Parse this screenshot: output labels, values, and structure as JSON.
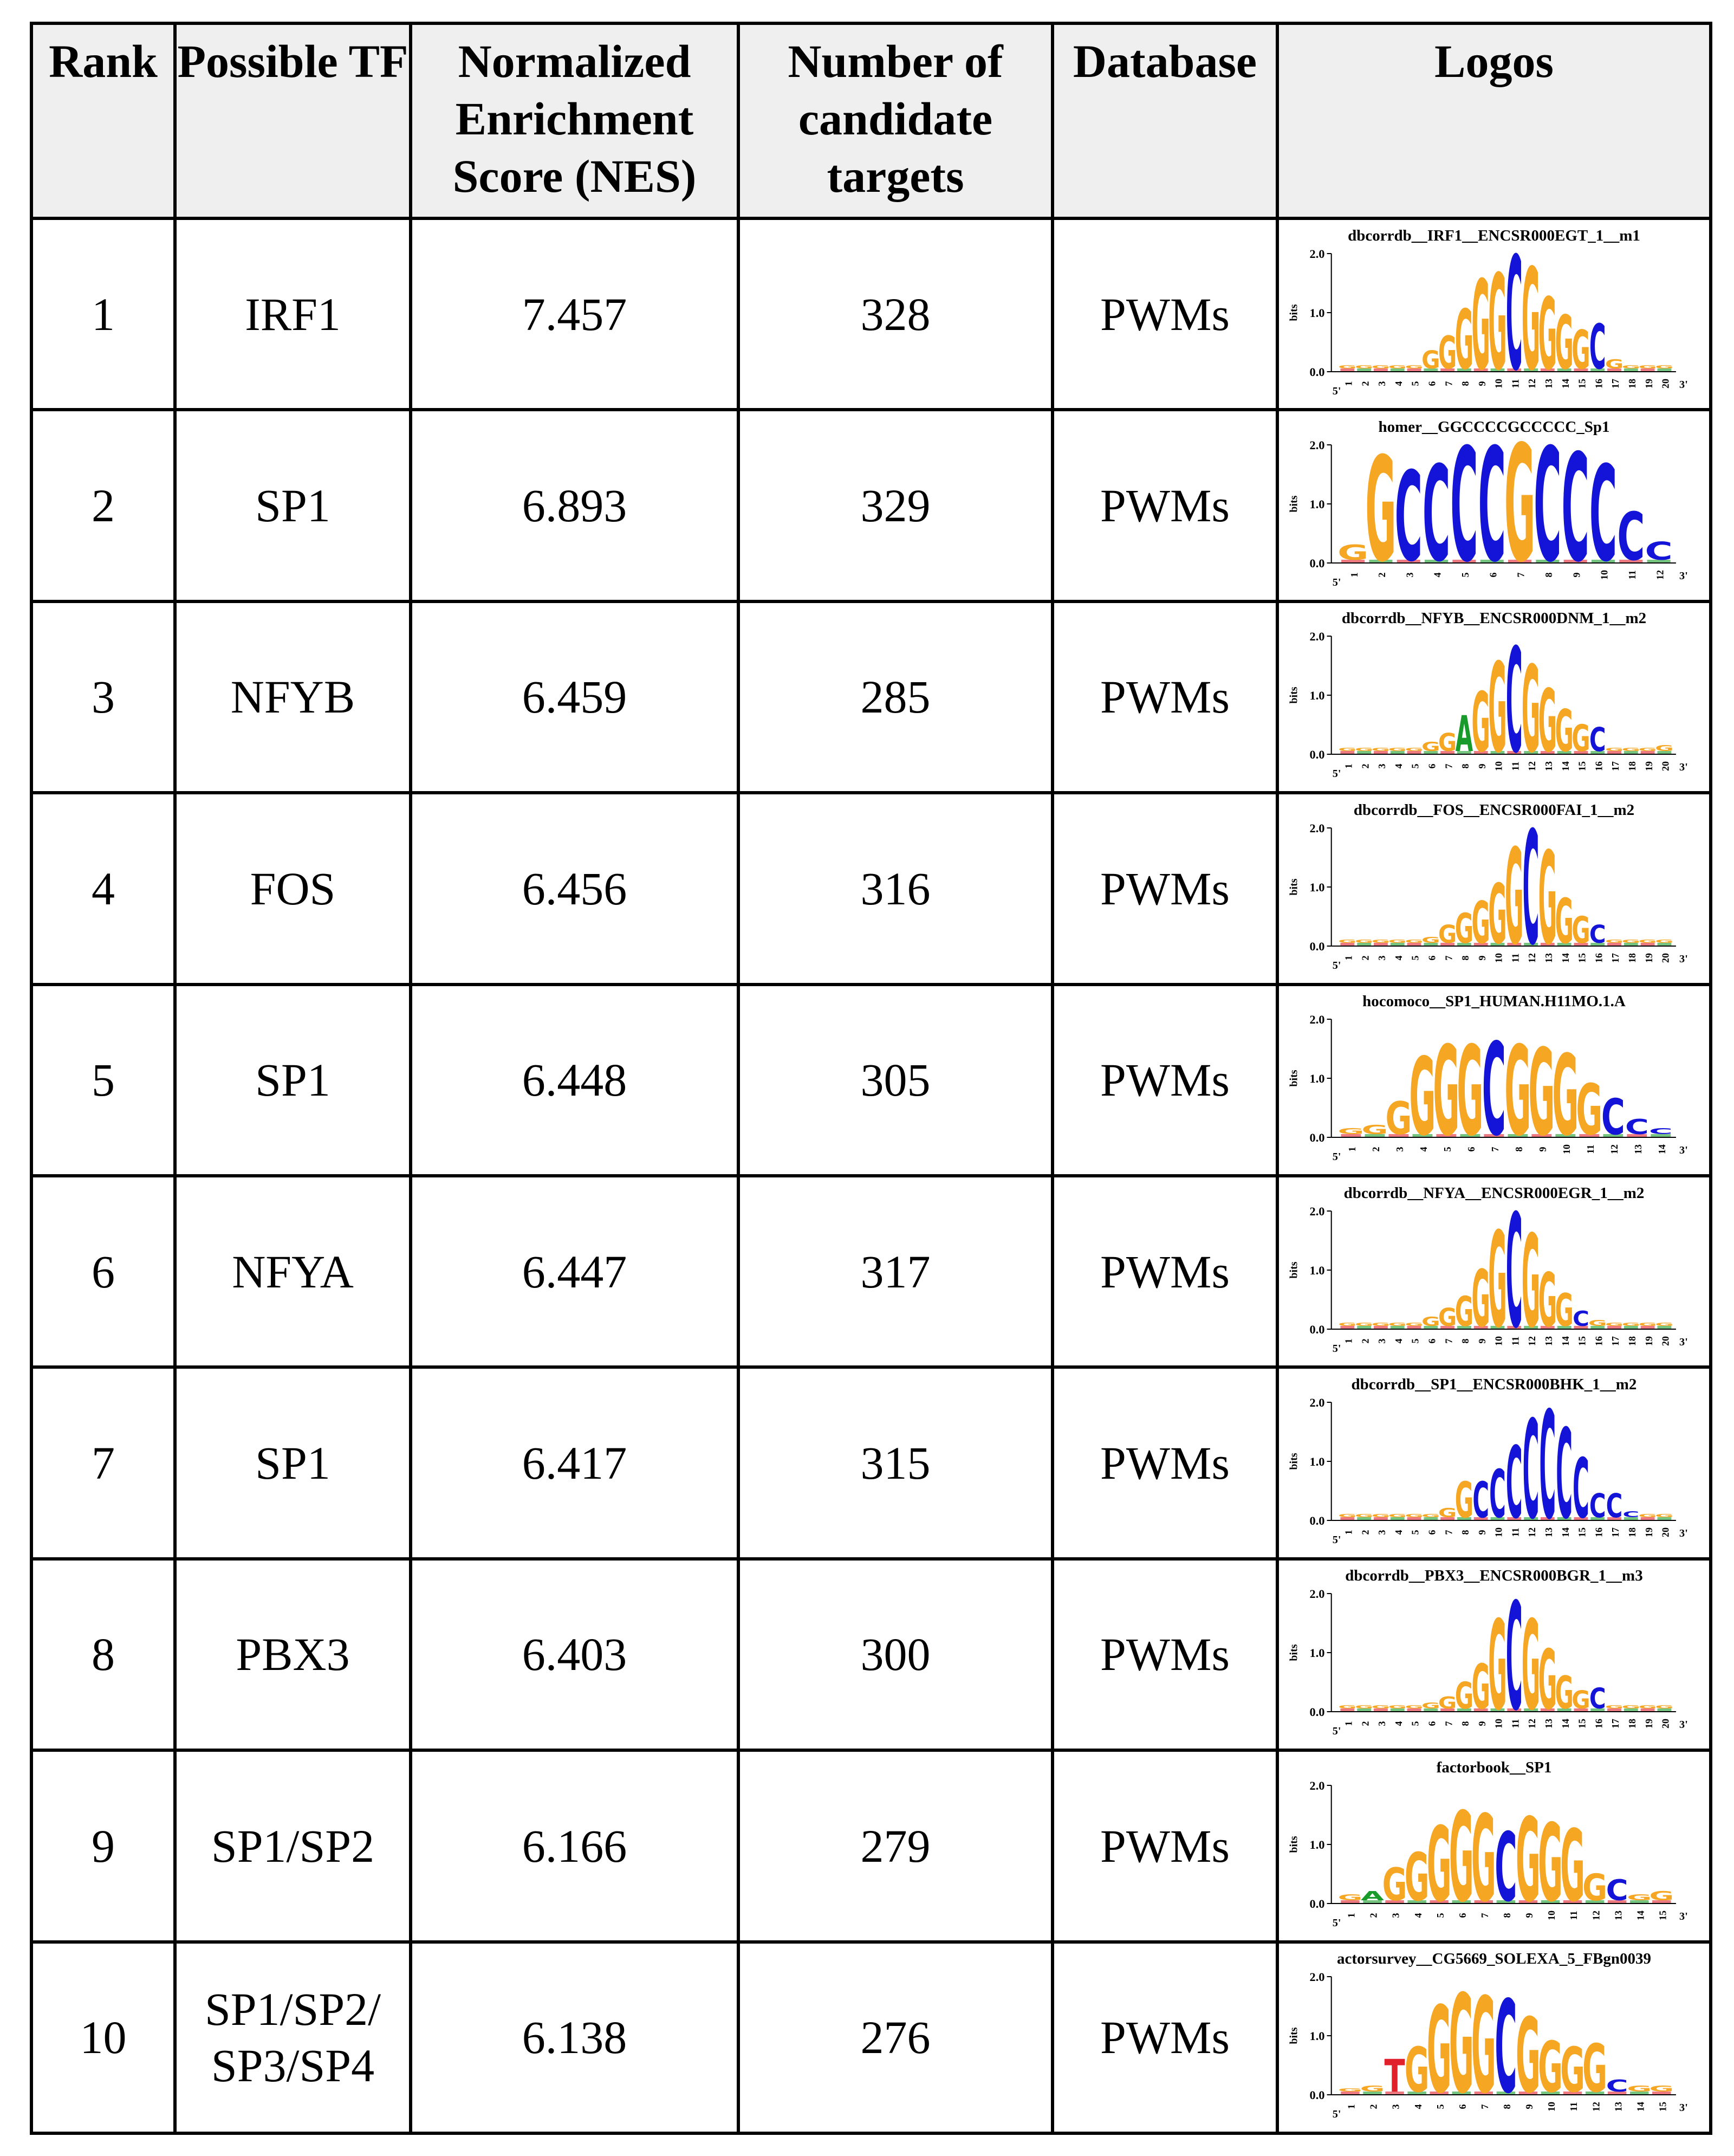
{
  "headers": {
    "rank": "Rank",
    "tf": "Possible TF",
    "nes": "Normalized Enrichment Score (NES)",
    "targets": "Number of candidate targets",
    "database": "Database",
    "logos": "Logos"
  },
  "rows": [
    {
      "rank": "1",
      "tf": "IRF1",
      "nes": "7.457",
      "targets": "328",
      "database": "PWMs",
      "logo_title": "dbcorrdb__IRF1__ENCSR000EGT_1__m1"
    },
    {
      "rank": "2",
      "tf": "SP1",
      "nes": "6.893",
      "targets": "329",
      "database": "PWMs",
      "logo_title": "homer__GGCCCCGCCCCC_Sp1"
    },
    {
      "rank": "3",
      "tf": "NFYB",
      "nes": "6.459",
      "targets": "285",
      "database": "PWMs",
      "logo_title": "dbcorrdb__NFYB__ENCSR000DNM_1__m2"
    },
    {
      "rank": "4",
      "tf": "FOS",
      "nes": "6.456",
      "targets": "316",
      "database": "PWMs",
      "logo_title": "dbcorrdb__FOS__ENCSR000FAI_1__m2"
    },
    {
      "rank": "5",
      "tf": "SP1",
      "nes": "6.448",
      "targets": "305",
      "database": "PWMs",
      "logo_title": "hocomoco__SP1_HUMAN.H11MO.1.A"
    },
    {
      "rank": "6",
      "tf": "NFYA",
      "nes": "6.447",
      "targets": "317",
      "database": "PWMs",
      "logo_title": "dbcorrdb__NFYA__ENCSR000EGR_1__m2"
    },
    {
      "rank": "7",
      "tf": "SP1",
      "nes": "6.417",
      "targets": "315",
      "database": "PWMs",
      "logo_title": "dbcorrdb__SP1__ENCSR000BHK_1__m2"
    },
    {
      "rank": "8",
      "tf": "PBX3",
      "nes": "6.403",
      "targets": "300",
      "database": "PWMs",
      "logo_title": "dbcorrdb__PBX3__ENCSR000BGR_1__m3"
    },
    {
      "rank": "9",
      "tf": "SP1/SP2",
      "nes": "6.166",
      "targets": "279",
      "database": "PWMs",
      "logo_title": "factorbook__SP1"
    },
    {
      "rank": "10",
      "tf": "SP1/SP2/ SP3/SP4",
      "nes": "6.138",
      "targets": "276",
      "database": "PWMs",
      "logo_title": "actorsurvey__CG5669_SOLEXA_5_FBgn0039"
    }
  ],
  "logos": [
    {
      "len": 20,
      "letters": [
        "G",
        "G",
        "G",
        "G",
        "G",
        "G",
        "G",
        "G",
        "G",
        "G",
        "C",
        "G",
        "G",
        "G",
        "G",
        "C",
        "G",
        "G",
        "G",
        "G"
      ],
      "heights": [
        0.05,
        0.05,
        0.05,
        0.05,
        0.05,
        0.3,
        0.55,
        1.0,
        1.5,
        1.6,
        1.9,
        1.7,
        1.2,
        0.9,
        0.65,
        0.75,
        0.15,
        0.05,
        0.05,
        0.05
      ]
    },
    {
      "len": 12,
      "letters": [
        "G",
        "G",
        "C",
        "C",
        "C",
        "C",
        "G",
        "C",
        "C",
        "C",
        "C",
        "C"
      ],
      "heights": [
        0.25,
        1.75,
        1.5,
        1.6,
        1.9,
        1.9,
        1.95,
        1.9,
        1.8,
        1.6,
        0.8,
        0.3
      ]
    },
    {
      "len": 20,
      "letters": [
        "G",
        "G",
        "G",
        "G",
        "G",
        "G",
        "G",
        "A",
        "G",
        "G",
        "C",
        "G",
        "G",
        "G",
        "G",
        "C",
        "G",
        "G",
        "G",
        "G"
      ],
      "heights": [
        0.05,
        0.05,
        0.05,
        0.05,
        0.05,
        0.15,
        0.3,
        0.6,
        1.0,
        1.5,
        1.75,
        1.45,
        1.05,
        0.7,
        0.45,
        0.4,
        0.05,
        0.05,
        0.05,
        0.1
      ]
    },
    {
      "len": 20,
      "letters": [
        "G",
        "G",
        "G",
        "G",
        "G",
        "G",
        "G",
        "G",
        "G",
        "G",
        "G",
        "C",
        "G",
        "G",
        "G",
        "C",
        "G",
        "G",
        "G",
        "G"
      ],
      "heights": [
        0.05,
        0.05,
        0.05,
        0.05,
        0.05,
        0.1,
        0.3,
        0.5,
        0.7,
        1.0,
        1.6,
        1.9,
        1.55,
        0.75,
        0.45,
        0.3,
        0.05,
        0.05,
        0.05,
        0.05
      ]
    },
    {
      "len": 14,
      "letters": [
        "G",
        "G",
        "G",
        "G",
        "G",
        "G",
        "C",
        "G",
        "G",
        "G",
        "G",
        "C",
        "C",
        "C"
      ],
      "heights": [
        0.1,
        0.15,
        0.55,
        1.3,
        1.5,
        1.5,
        1.55,
        1.5,
        1.45,
        1.35,
        0.85,
        0.6,
        0.25,
        0.1
      ]
    },
    {
      "len": 20,
      "letters": [
        "G",
        "G",
        "G",
        "G",
        "G",
        "G",
        "G",
        "G",
        "G",
        "G",
        "C",
        "G",
        "G",
        "G",
        "C",
        "G",
        "G",
        "G",
        "G",
        "G"
      ],
      "heights": [
        0.05,
        0.05,
        0.05,
        0.05,
        0.05,
        0.15,
        0.3,
        0.5,
        0.95,
        1.6,
        1.9,
        1.55,
        0.9,
        0.55,
        0.25,
        0.1,
        0.05,
        0.05,
        0.05,
        0.05
      ]
    },
    {
      "len": 20,
      "letters": [
        "G",
        "G",
        "G",
        "G",
        "G",
        "G",
        "G",
        "G",
        "C",
        "C",
        "C",
        "C",
        "C",
        "C",
        "C",
        "C",
        "C",
        "C",
        "G",
        "G"
      ],
      "heights": [
        0.05,
        0.05,
        0.05,
        0.05,
        0.05,
        0.05,
        0.15,
        0.6,
        0.6,
        0.8,
        1.2,
        1.65,
        1.8,
        1.5,
        1.0,
        0.4,
        0.4,
        0.1,
        0.05,
        0.05
      ]
    },
    {
      "len": 20,
      "letters": [
        "G",
        "G",
        "G",
        "G",
        "G",
        "G",
        "G",
        "G",
        "G",
        "G",
        "C",
        "G",
        "G",
        "G",
        "G",
        "C",
        "G",
        "G",
        "G",
        "G"
      ],
      "heights": [
        0.05,
        0.05,
        0.05,
        0.05,
        0.05,
        0.1,
        0.2,
        0.45,
        0.75,
        1.5,
        1.8,
        1.5,
        1.0,
        0.55,
        0.3,
        0.35,
        0.05,
        0.05,
        0.05,
        0.05
      ]
    },
    {
      "len": 15,
      "letters": [
        "G",
        "A",
        "G",
        "G",
        "G",
        "G",
        "G",
        "C",
        "G",
        "G",
        "G",
        "G",
        "C",
        "G",
        "G"
      ],
      "heights": [
        0.1,
        0.15,
        0.55,
        0.8,
        1.25,
        1.5,
        1.45,
        1.15,
        1.4,
        1.3,
        1.2,
        0.45,
        0.35,
        0.1,
        0.15
      ]
    },
    {
      "len": 15,
      "letters": [
        "G",
        "G",
        "T",
        "G",
        "G",
        "G",
        "G",
        "C",
        "G",
        "G",
        "G",
        "G",
        "C",
        "G",
        "G"
      ],
      "heights": [
        0.05,
        0.1,
        0.55,
        0.75,
        1.45,
        1.65,
        1.6,
        1.55,
        1.25,
        0.85,
        0.75,
        0.8,
        0.2,
        0.1,
        0.1
      ]
    }
  ],
  "logo_axis": {
    "y_label": "bits",
    "y_top": "2.0",
    "y_mid": "1.0",
    "y_zero": "0.0",
    "end5": "5'",
    "end3": "3'"
  },
  "colors": {
    "G": "#f5a623",
    "C": "#1414d8",
    "A": "#189b2a",
    "T": "#e0202a"
  }
}
